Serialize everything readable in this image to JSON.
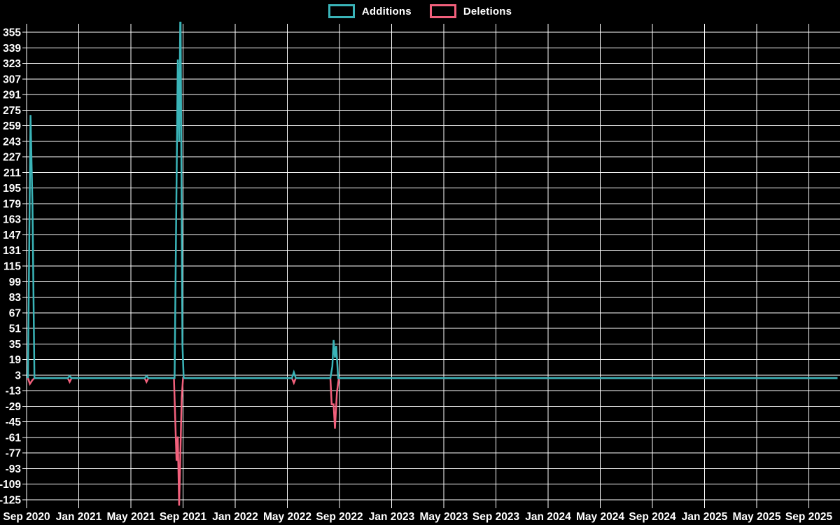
{
  "chart_data": {
    "type": "line",
    "title": "",
    "legend": [
      {
        "label": "Additions",
        "color": "#3ab4b8"
      },
      {
        "label": "Deletions",
        "color": "#f2607c"
      }
    ],
    "colors": {
      "background": "#000000",
      "grid": "#ffffff",
      "tick_text": "#ffffff",
      "additions": "#3ab4b8",
      "deletions": "#f2607c"
    },
    "xlabel": "",
    "ylabel": "",
    "x_tick_labels": [
      "Sep 2020",
      "Jan 2021",
      "May 2021",
      "Sep 2021",
      "Jan 2022",
      "May 2022",
      "Sep 2022",
      "Jan 2023",
      "May 2023",
      "Sep 2023",
      "Jan 2024",
      "May 2024",
      "Sep 2024",
      "Jan 2025",
      "May 2025",
      "Sep 2025"
    ],
    "y_tick_values": [
      355,
      339,
      323,
      307,
      291,
      275,
      259,
      243,
      227,
      211,
      195,
      179,
      163,
      147,
      131,
      115,
      99,
      83,
      67,
      51,
      35,
      19,
      3,
      -13,
      -29,
      -45,
      -61,
      -77,
      -93,
      -109,
      -125
    ],
    "y_axis_range": [
      -125,
      355
    ],
    "x_months_per_gridline": 4,
    "grid": true,
    "legend_position": "top-center",
    "series": [
      {
        "name": "Additions",
        "color": "#3ab4b8",
        "points_x_months_from_sep2020": [
          0.1,
          0.3,
          0.45,
          0.6,
          3.15,
          3.3,
          3.45,
          9.05,
          9.2,
          9.35,
          11.35,
          11.6,
          11.7,
          11.8,
          11.95,
          12.05,
          20.35,
          20.5,
          20.65,
          23.3,
          23.45,
          23.55,
          23.65,
          23.75,
          23.9,
          62.2
        ],
        "values": [
          0,
          270,
          177,
          0,
          0,
          2,
          0,
          0,
          2,
          0,
          0,
          327,
          243,
          390,
          35,
          0,
          0,
          6,
          0,
          0,
          12,
          39,
          21,
          33,
          0,
          0
        ],
        "note_peaks": "spike ~270 mid-Sep 2020; double spike late Aug 2021 clipped above 355; spike 39 late Aug 2022; otherwise 0"
      },
      {
        "name": "Deletions",
        "color": "#f2607c",
        "points_x_months_from_sep2020": [
          0.1,
          0.25,
          0.45,
          0.6,
          3.15,
          3.3,
          3.45,
          9.05,
          9.2,
          9.35,
          11.3,
          11.5,
          11.6,
          11.7,
          11.9,
          12.0,
          20.35,
          20.5,
          20.65,
          23.3,
          23.4,
          23.55,
          23.65,
          23.8,
          23.95,
          62.2
        ],
        "values": [
          0,
          -6,
          -2,
          0,
          0,
          -4,
          0,
          0,
          -4,
          0,
          0,
          -85,
          -60,
          -131,
          -20,
          0,
          0,
          -5,
          0,
          0,
          -27,
          -27,
          -52,
          -15,
          0,
          0
        ],
        "note_peaks": "big dip late Aug 2021 reaching below -125 (clipped at bottom); dip -52 late Aug 2022; small dips Dec 2020 / Jun 2021 / Jun 2022; otherwise 0"
      }
    ]
  }
}
